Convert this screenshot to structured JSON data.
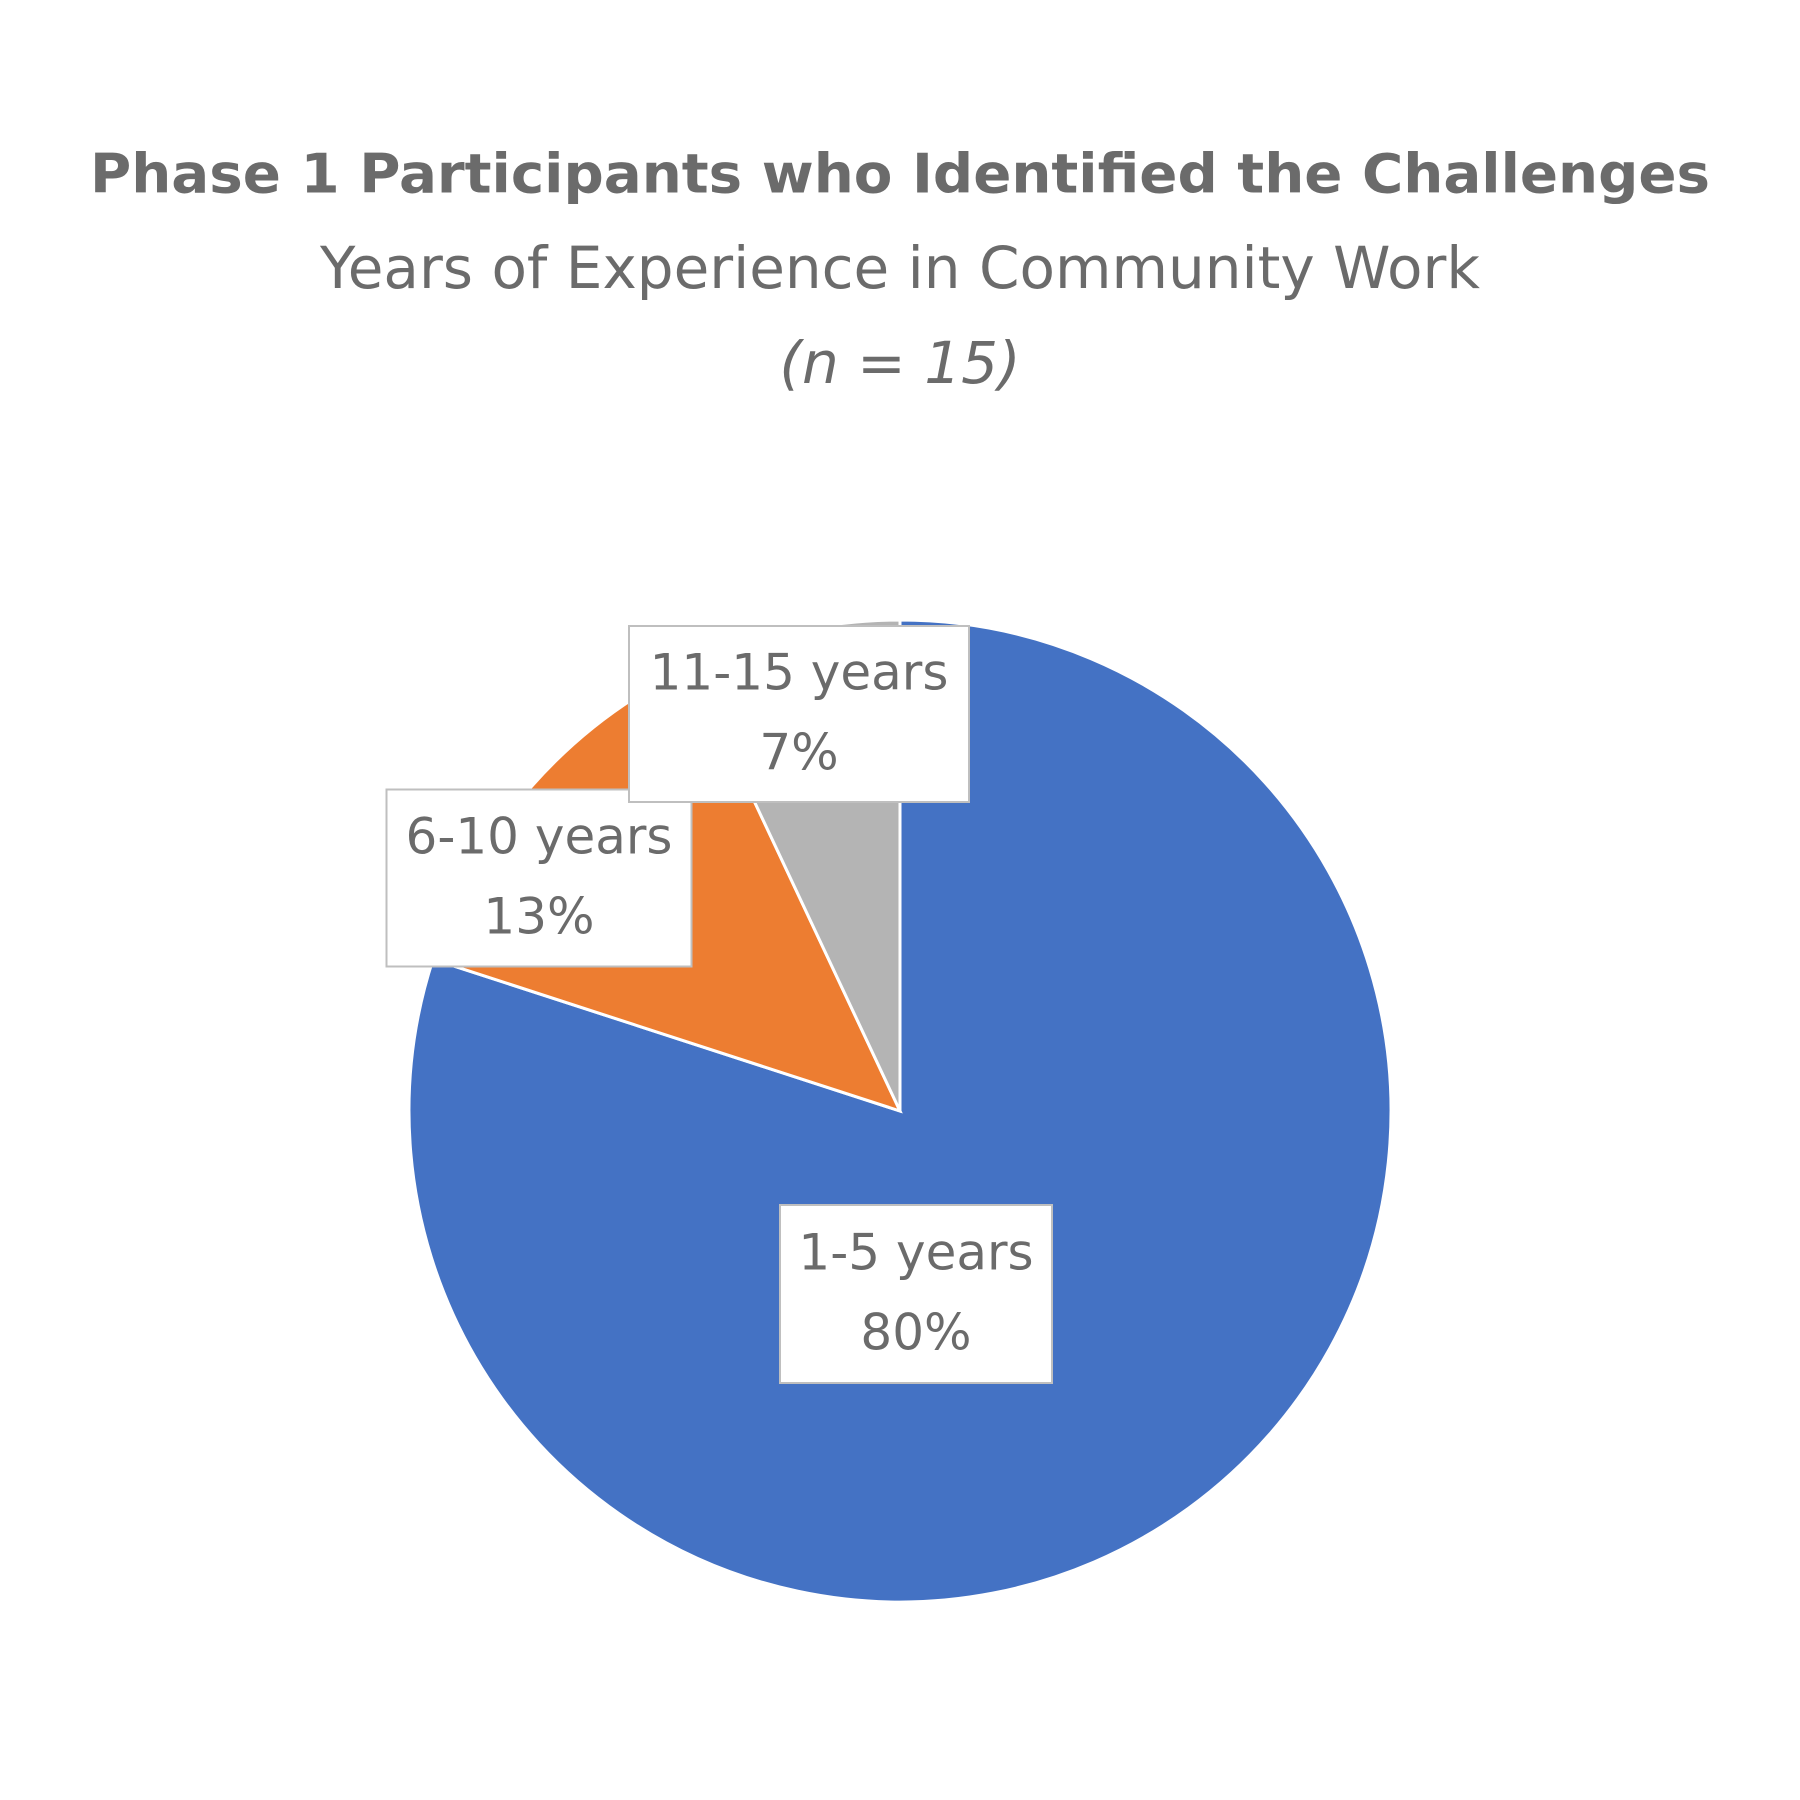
{
  "chart_data": {
    "type": "pie",
    "title": "Phase 1 Participants who Identified the Challenges",
    "subtitle": "Years of Experience in Community Work",
    "annotation": "(n = 15)",
    "categories": [
      "1-5 years",
      "6-10 years",
      "11-15 years"
    ],
    "values": [
      80,
      13,
      7
    ],
    "value_labels": [
      "80%",
      "13%",
      "7%"
    ],
    "colors": [
      "#4472c4",
      "#ed7d31",
      "#b4b4b4"
    ]
  }
}
